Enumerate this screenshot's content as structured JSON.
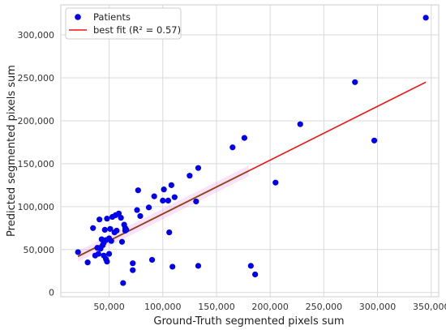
{
  "chart_data": {
    "type": "scatter",
    "title": "",
    "xlabel": "Ground-Truth segmented pixels sum",
    "ylabel": "Predicted segmented pixels sum",
    "xlim": [
      5000,
      357000
    ],
    "ylim": [
      -5000,
      335000
    ],
    "x_ticks": [
      50000,
      100000,
      150000,
      200000,
      250000,
      300000,
      350000
    ],
    "x_tick_labels": [
      "50,000",
      "100,000",
      "150,000",
      "200,000",
      "250,000",
      "300,000",
      "350,000"
    ],
    "y_ticks": [
      0,
      50000,
      100000,
      150000,
      200000,
      250000,
      300000
    ],
    "y_tick_labels": [
      "0",
      "50,000",
      "100,000",
      "150,000",
      "200,000",
      "250,000",
      "300,000"
    ],
    "grid": true,
    "legend_position": "top-left",
    "series": [
      {
        "name": "Patients",
        "kind": "points",
        "color": "#0000ee",
        "x": [
          21000,
          30000,
          35000,
          37000,
          39000,
          40000,
          41000,
          42000,
          43000,
          44000,
          45000,
          45000,
          46000,
          47000,
          47000,
          48000,
          48000,
          50000,
          50000,
          51000,
          52000,
          53000,
          55000,
          56000,
          57000,
          59000,
          61000,
          62000,
          63000,
          64000,
          65000,
          65000,
          66000,
          72000,
          72000,
          76000,
          77000,
          79000,
          87000,
          90000,
          92000,
          100000,
          101000,
          105000,
          106000,
          108000,
          109000,
          111000,
          125000,
          131000,
          133000,
          133000,
          165000,
          176000,
          182000,
          186000,
          205000,
          228000,
          279000,
          297000,
          345000
        ],
        "y": [
          47000,
          35000,
          75000,
          43000,
          52000,
          45000,
          85000,
          51000,
          62000,
          55000,
          58000,
          43000,
          73000,
          39000,
          61000,
          36000,
          86000,
          45000,
          63000,
          74000,
          60000,
          88000,
          70000,
          90000,
          72000,
          92000,
          87000,
          59000,
          11000,
          79000,
          72000,
          75000,
          73000,
          34000,
          26000,
          96000,
          119000,
          89000,
          99000,
          38000,
          112000,
          107000,
          120000,
          107000,
          70000,
          125000,
          30000,
          111000,
          136000,
          106000,
          31000,
          145000,
          169000,
          180000,
          31000,
          21000,
          128000,
          196000,
          245000,
          177000,
          320000
        ]
      },
      {
        "name": "best fit (R² = 0.57)",
        "kind": "line",
        "color": "#ee1111",
        "x": [
          21000,
          345000
        ],
        "y": [
          42000,
          245000
        ]
      }
    ],
    "highlight_band": {
      "x": [
        21000,
        180000
      ],
      "color": "#f08cf0",
      "overlay_color": "#8b4513"
    }
  }
}
